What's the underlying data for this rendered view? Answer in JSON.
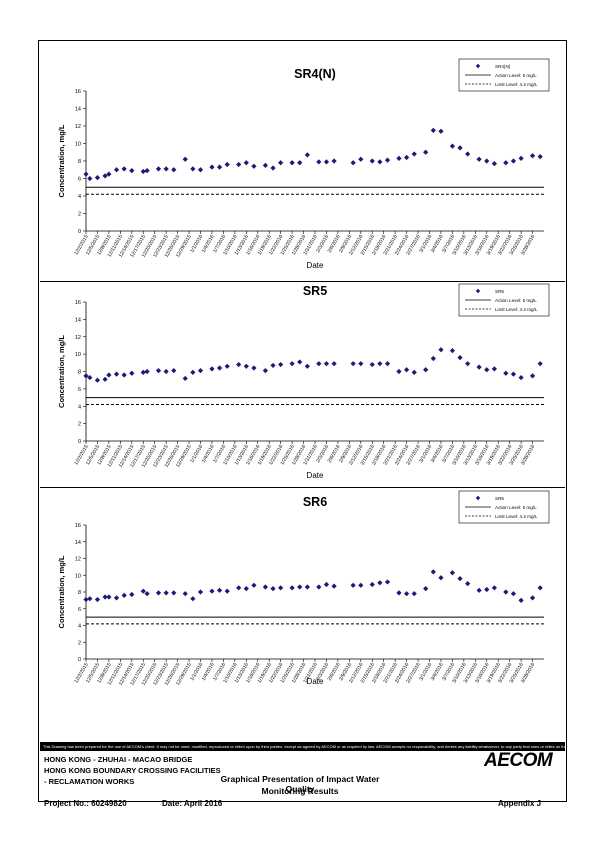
{
  "chart_data": [
    {
      "type": "scatter",
      "title": "SR4(N)",
      "xlabel": "Date",
      "ylabel": "Concentration, mg/L",
      "ylim": [
        0,
        16
      ],
      "yticks": [
        0,
        2,
        4,
        6,
        8,
        10,
        12,
        14,
        16
      ],
      "xlim": [
        "2015-12-02",
        "2016-03-31"
      ],
      "xtick_labels": [
        "12/2/2015",
        "12/5/2015",
        "12/8/2015",
        "12/11/2015",
        "12/14/2015",
        "12/17/2015",
        "12/20/2015",
        "12/23/2015",
        "12/26/2015",
        "12/29/2015",
        "1/1/2016",
        "1/4/2016",
        "1/7/2016",
        "1/10/2016",
        "1/13/2016",
        "1/16/2016",
        "1/19/2016",
        "1/22/2016",
        "1/25/2016",
        "1/28/2016",
        "1/31/2016",
        "2/3/2016",
        "2/6/2016",
        "2/9/2016",
        "2/12/2016",
        "2/15/2016",
        "2/18/2016",
        "2/21/2016",
        "2/24/2016",
        "2/27/2016",
        "3/1/2016",
        "3/4/2016",
        "3/7/2016",
        "3/10/2016",
        "3/13/2016",
        "3/16/2016",
        "3/19/2016",
        "3/22/2016",
        "3/25/2016",
        "3/28/2016"
      ],
      "grid": false,
      "legend_position": "top-right",
      "marker_color": "#1a1a7a",
      "series": [
        {
          "name": "SR4(N)",
          "marker": "diamond",
          "x": [
            "2015-12-02",
            "2015-12-03",
            "2015-12-05",
            "2015-12-07",
            "2015-12-08",
            "2015-12-10",
            "2015-12-12",
            "2015-12-14",
            "2015-12-17",
            "2015-12-18",
            "2015-12-21",
            "2015-12-23",
            "2015-12-25",
            "2015-12-28",
            "2015-12-30",
            "2016-01-01",
            "2016-01-04",
            "2016-01-06",
            "2016-01-08",
            "2016-01-11",
            "2016-01-13",
            "2016-01-15",
            "2016-01-18",
            "2016-01-20",
            "2016-01-22",
            "2016-01-25",
            "2016-01-27",
            "2016-01-29",
            "2016-02-01",
            "2016-02-03",
            "2016-02-05",
            "2016-02-10",
            "2016-02-12",
            "2016-02-15",
            "2016-02-17",
            "2016-02-19",
            "2016-02-22",
            "2016-02-24",
            "2016-02-26",
            "2016-02-29",
            "2016-03-02",
            "2016-03-04",
            "2016-03-07",
            "2016-03-09",
            "2016-03-11",
            "2016-03-14",
            "2016-03-16",
            "2016-03-18",
            "2016-03-21",
            "2016-03-23",
            "2016-03-25",
            "2016-03-28",
            "2016-03-30"
          ],
          "y": [
            6.5,
            6.0,
            6.1,
            6.3,
            6.5,
            7.0,
            7.1,
            6.9,
            6.8,
            6.9,
            7.1,
            7.1,
            7.0,
            8.2,
            7.1,
            7.0,
            7.3,
            7.3,
            7.6,
            7.6,
            7.8,
            7.4,
            7.5,
            7.2,
            7.8,
            7.8,
            7.8,
            8.7,
            7.9,
            7.9,
            8.0,
            7.8,
            8.2,
            8.0,
            7.9,
            8.1,
            8.3,
            8.4,
            8.8,
            9.0,
            11.5,
            11.4,
            9.7,
            9.5,
            8.8,
            8.2,
            8.0,
            7.7,
            7.8,
            8.0,
            8.3,
            8.6,
            8.5
          ]
        },
        {
          "name": "Action Level: 5 mg/L",
          "style": "solid",
          "y": 5
        },
        {
          "name": "Limit Level: 4.2 mg/L",
          "style": "dashed",
          "y": 4.2
        }
      ]
    },
    {
      "type": "scatter",
      "title": "SR5",
      "xlabel": "Date",
      "ylabel": "Concentration, mg/L",
      "ylim": [
        0,
        16
      ],
      "yticks": [
        0,
        2,
        4,
        6,
        8,
        10,
        12,
        14,
        16
      ],
      "xlim": [
        "2015-12-02",
        "2016-03-31"
      ],
      "xtick_labels": [
        "12/2/2015",
        "12/5/2015",
        "12/8/2015",
        "12/11/2015",
        "12/14/2015",
        "12/17/2015",
        "12/20/2015",
        "12/23/2015",
        "12/26/2015",
        "12/29/2015",
        "1/1/2016",
        "1/4/2016",
        "1/7/2016",
        "1/10/2016",
        "1/13/2016",
        "1/16/2016",
        "1/19/2016",
        "1/22/2016",
        "1/25/2016",
        "1/28/2016",
        "1/31/2016",
        "2/3/2016",
        "2/6/2016",
        "2/9/2016",
        "2/12/2016",
        "2/15/2016",
        "2/18/2016",
        "2/21/2016",
        "2/24/2016",
        "2/27/2016",
        "3/1/2016",
        "3/4/2016",
        "3/7/2016",
        "3/10/2016",
        "3/13/2016",
        "3/16/2016",
        "3/19/2016",
        "3/22/2016",
        "3/25/2016",
        "3/28/2016"
      ],
      "grid": false,
      "legend_position": "top-right",
      "marker_color": "#1a1a7a",
      "series": [
        {
          "name": "SR5",
          "marker": "diamond",
          "x": [
            "2015-12-02",
            "2015-12-03",
            "2015-12-05",
            "2015-12-07",
            "2015-12-08",
            "2015-12-10",
            "2015-12-12",
            "2015-12-14",
            "2015-12-17",
            "2015-12-18",
            "2015-12-21",
            "2015-12-23",
            "2015-12-25",
            "2015-12-28",
            "2015-12-30",
            "2016-01-01",
            "2016-01-04",
            "2016-01-06",
            "2016-01-08",
            "2016-01-11",
            "2016-01-13",
            "2016-01-15",
            "2016-01-18",
            "2016-01-20",
            "2016-01-22",
            "2016-01-25",
            "2016-01-27",
            "2016-01-29",
            "2016-02-01",
            "2016-02-03",
            "2016-02-05",
            "2016-02-10",
            "2016-02-12",
            "2016-02-15",
            "2016-02-17",
            "2016-02-19",
            "2016-02-22",
            "2016-02-24",
            "2016-02-26",
            "2016-02-29",
            "2016-03-02",
            "2016-03-04",
            "2016-03-07",
            "2016-03-09",
            "2016-03-11",
            "2016-03-14",
            "2016-03-16",
            "2016-03-18",
            "2016-03-21",
            "2016-03-23",
            "2016-03-25",
            "2016-03-28",
            "2016-03-30"
          ],
          "y": [
            7.5,
            7.3,
            7.0,
            7.1,
            7.6,
            7.7,
            7.6,
            7.8,
            7.9,
            8.0,
            8.1,
            8.0,
            8.1,
            7.2,
            7.9,
            8.1,
            8.3,
            8.4,
            8.6,
            8.8,
            8.6,
            8.4,
            8.1,
            8.7,
            8.8,
            8.9,
            9.1,
            8.6,
            8.9,
            8.9,
            8.9,
            8.9,
            8.9,
            8.8,
            8.9,
            8.9,
            8.0,
            8.2,
            7.9,
            8.2,
            9.5,
            10.5,
            10.4,
            9.6,
            8.9,
            8.5,
            8.2,
            8.3,
            7.8,
            7.7,
            7.3,
            7.5,
            8.9
          ]
        },
        {
          "name": "Action Level: 5 mg/L",
          "style": "solid",
          "y": 5
        },
        {
          "name": "Limit Level: 4.2 mg/L",
          "style": "dashed",
          "y": 4.2
        }
      ]
    },
    {
      "type": "scatter",
      "title": "SR6",
      "xlabel": "Date",
      "ylabel": "Concentration, mg/L",
      "ylim": [
        0,
        16
      ],
      "yticks": [
        0,
        2,
        4,
        6,
        8,
        10,
        12,
        14,
        16
      ],
      "xlim": [
        "2015-12-02",
        "2016-03-31"
      ],
      "xtick_labels": [
        "12/2/2015",
        "12/5/2015",
        "12/8/2015",
        "12/11/2015",
        "12/14/2015",
        "12/17/2015",
        "12/20/2015",
        "12/23/2015",
        "12/26/2015",
        "12/29/2015",
        "1/1/2016",
        "1/4/2016",
        "1/7/2016",
        "1/10/2016",
        "1/13/2016",
        "1/16/2016",
        "1/19/2016",
        "1/22/2016",
        "1/25/2016",
        "1/28/2016",
        "1/31/2016",
        "2/3/2016",
        "2/6/2016",
        "2/9/2016",
        "2/12/2016",
        "2/15/2016",
        "2/18/2016",
        "2/21/2016",
        "2/24/2016",
        "2/27/2016",
        "3/1/2016",
        "3/4/2016",
        "3/7/2016",
        "3/10/2016",
        "3/13/2016",
        "3/16/2016",
        "3/19/2016",
        "3/22/2016",
        "3/25/2016",
        "3/28/2016"
      ],
      "grid": false,
      "legend_position": "top-right",
      "marker_color": "#1a1a7a",
      "series": [
        {
          "name": "SR6",
          "marker": "diamond",
          "x": [
            "2015-12-02",
            "2015-12-03",
            "2015-12-05",
            "2015-12-07",
            "2015-12-08",
            "2015-12-10",
            "2015-12-12",
            "2015-12-14",
            "2015-12-17",
            "2015-12-18",
            "2015-12-21",
            "2015-12-23",
            "2015-12-25",
            "2015-12-28",
            "2015-12-30",
            "2016-01-01",
            "2016-01-04",
            "2016-01-06",
            "2016-01-08",
            "2016-01-11",
            "2016-01-13",
            "2016-01-15",
            "2016-01-18",
            "2016-01-20",
            "2016-01-22",
            "2016-01-25",
            "2016-01-27",
            "2016-01-29",
            "2016-02-01",
            "2016-02-03",
            "2016-02-05",
            "2016-02-10",
            "2016-02-12",
            "2016-02-15",
            "2016-02-17",
            "2016-02-19",
            "2016-02-22",
            "2016-02-24",
            "2016-02-26",
            "2016-02-29",
            "2016-03-02",
            "2016-03-04",
            "2016-03-07",
            "2016-03-09",
            "2016-03-11",
            "2016-03-14",
            "2016-03-16",
            "2016-03-18",
            "2016-03-21",
            "2016-03-23",
            "2016-03-25",
            "2016-03-28",
            "2016-03-30"
          ],
          "y": [
            7.1,
            7.2,
            7.1,
            7.4,
            7.4,
            7.3,
            7.6,
            7.7,
            8.1,
            7.8,
            7.9,
            7.9,
            7.9,
            7.8,
            7.2,
            8.0,
            8.1,
            8.2,
            8.1,
            8.5,
            8.4,
            8.8,
            8.6,
            8.4,
            8.5,
            8.5,
            8.6,
            8.6,
            8.6,
            8.9,
            8.7,
            8.8,
            8.8,
            8.9,
            9.1,
            9.2,
            7.9,
            7.8,
            7.8,
            8.4,
            10.4,
            9.7,
            10.3,
            9.6,
            9.0,
            8.2,
            8.3,
            8.5,
            8.0,
            7.8,
            7.0,
            7.3,
            8.5
          ]
        },
        {
          "name": "Action Level: 5 mg/L",
          "style": "solid",
          "y": 5
        },
        {
          "name": "Limit Level: 4.2 mg/L",
          "style": "dashed",
          "y": 4.2
        }
      ]
    }
  ],
  "footer": {
    "disclaimer": "This Drawing has been prepared for the use of AECOM's client. It may not be used, modified, reproduced or relied upon by third parties, except as agreed by AECOM or as required by law. AECOM accepts no responsibility, and denies any liability whatsoever, to any party that uses or relies on this drawing without AECOM's express written consent.",
    "project_line_1": "HONG KONG - ZHUHAI - MACAO BRIDGE",
    "project_line_2": "HONG KONG BOUNDARY CROSSING FACILITIES",
    "project_line_3": "- RECLAMATION WORKS",
    "logo_text": "AECOM",
    "title_line_1": "Graphical Presentation of Impact Water Quality",
    "title_line_2": "Monitoring Results",
    "project_no": "Project No.: 60249820",
    "date": "Date: April 2016",
    "appendix": "Appendix J"
  }
}
